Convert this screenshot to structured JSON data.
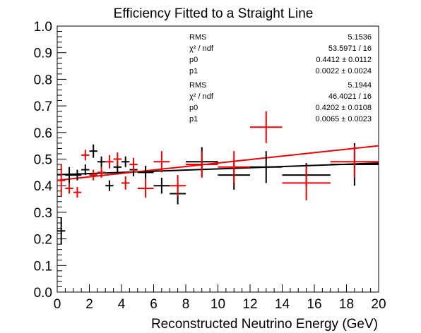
{
  "chart_data": {
    "type": "scatter",
    "title": "Efficiency Fitted to a Straight Line",
    "xlabel": "Reconstructed Neutrino Energy (GeV)",
    "ylabel": "",
    "xlim": [
      0,
      20
    ],
    "ylim": [
      0,
      1.0
    ],
    "xticks": [
      0,
      2,
      4,
      6,
      8,
      10,
      12,
      14,
      16,
      18,
      20
    ],
    "xtick_labels": [
      "0",
      "2",
      "4",
      "6",
      "8",
      "10",
      "12",
      "14",
      "16",
      "18",
      "20"
    ],
    "yticks": [
      0,
      0.1,
      0.2,
      0.3,
      0.4,
      0.5,
      0.6,
      0.7,
      0.8,
      0.9,
      1.0
    ],
    "ytick_labels": [
      "0.0",
      "0.1",
      "0.2",
      "0.3",
      "0.4",
      "0.5",
      "0.6",
      "0.7",
      "0.8",
      "0.9",
      "1.0"
    ],
    "grid": false,
    "series": [
      {
        "color": "#000000",
        "points": [
          {
            "x": 0.25,
            "y": 0.23,
            "xerr": 0.25,
            "yerr": 0.05
          },
          {
            "x": 0.75,
            "y": 0.44,
            "xerr": 0.25,
            "yerr": 0.03
          },
          {
            "x": 1.25,
            "y": 0.44,
            "xerr": 0.25,
            "yerr": 0.02
          },
          {
            "x": 1.75,
            "y": 0.46,
            "xerr": 0.25,
            "yerr": 0.02
          },
          {
            "x": 2.25,
            "y": 0.53,
            "xerr": 0.25,
            "yerr": 0.025
          },
          {
            "x": 2.75,
            "y": 0.49,
            "xerr": 0.25,
            "yerr": 0.02
          },
          {
            "x": 3.25,
            "y": 0.4,
            "xerr": 0.25,
            "yerr": 0.02
          },
          {
            "x": 3.75,
            "y": 0.47,
            "xerr": 0.25,
            "yerr": 0.025
          },
          {
            "x": 4.25,
            "y": 0.49,
            "xerr": 0.25,
            "yerr": 0.02
          },
          {
            "x": 4.75,
            "y": 0.46,
            "xerr": 0.25,
            "yerr": 0.025
          },
          {
            "x": 5.5,
            "y": 0.45,
            "xerr": 0.5,
            "yerr": 0.025
          },
          {
            "x": 6.5,
            "y": 0.4,
            "xerr": 0.5,
            "yerr": 0.03
          },
          {
            "x": 7.5,
            "y": 0.37,
            "xerr": 0.5,
            "yerr": 0.04
          },
          {
            "x": 9.0,
            "y": 0.49,
            "xerr": 1.0,
            "yerr": 0.055
          },
          {
            "x": 11.0,
            "y": 0.44,
            "xerr": 1.0,
            "yerr": 0.055
          },
          {
            "x": 13.0,
            "y": 0.47,
            "xerr": 1.0,
            "yerr": 0.06
          },
          {
            "x": 15.5,
            "y": 0.44,
            "xerr": 1.5,
            "yerr": 0.045
          },
          {
            "x": 18.5,
            "y": 0.48,
            "xerr": 1.5,
            "yerr": 0.08
          }
        ],
        "fit": {
          "p0": 0.4412,
          "p1": 0.0022
        }
      },
      {
        "color": "#ee0000",
        "points": [
          {
            "x": 0.25,
            "y": 0.42,
            "xerr": 0.25,
            "yerr": 0.06
          },
          {
            "x": 0.75,
            "y": 0.39,
            "xerr": 0.25,
            "yerr": 0.02
          },
          {
            "x": 1.25,
            "y": 0.375,
            "xerr": 0.25,
            "yerr": 0.02
          },
          {
            "x": 1.75,
            "y": 0.515,
            "xerr": 0.25,
            "yerr": 0.02
          },
          {
            "x": 2.25,
            "y": 0.44,
            "xerr": 0.25,
            "yerr": 0.02
          },
          {
            "x": 2.75,
            "y": 0.45,
            "xerr": 0.25,
            "yerr": 0.02
          },
          {
            "x": 3.25,
            "y": 0.49,
            "xerr": 0.25,
            "yerr": 0.025
          },
          {
            "x": 3.75,
            "y": 0.5,
            "xerr": 0.25,
            "yerr": 0.025
          },
          {
            "x": 4.25,
            "y": 0.41,
            "xerr": 0.25,
            "yerr": 0.025
          },
          {
            "x": 4.75,
            "y": 0.48,
            "xerr": 0.25,
            "yerr": 0.025
          },
          {
            "x": 5.5,
            "y": 0.39,
            "xerr": 0.5,
            "yerr": 0.035
          },
          {
            "x": 6.5,
            "y": 0.49,
            "xerr": 0.5,
            "yerr": 0.04
          },
          {
            "x": 7.5,
            "y": 0.4,
            "xerr": 0.5,
            "yerr": 0.04
          },
          {
            "x": 9.0,
            "y": 0.48,
            "xerr": 1.0,
            "yerr": 0.05
          },
          {
            "x": 11.0,
            "y": 0.47,
            "xerr": 1.0,
            "yerr": 0.06
          },
          {
            "x": 13.0,
            "y": 0.62,
            "xerr": 1.0,
            "yerr": 0.06
          },
          {
            "x": 15.5,
            "y": 0.41,
            "xerr": 1.5,
            "yerr": 0.065
          },
          {
            "x": 18.5,
            "y": 0.49,
            "xerr": 1.5,
            "yerr": 0.06
          }
        ],
        "fit": {
          "p0": 0.4202,
          "p1": 0.0065
        }
      }
    ],
    "stats_boxes": [
      {
        "rows": [
          {
            "label": "RMS",
            "value": "5.1536"
          },
          {
            "label": "χ² / ndf",
            "value": "53.5971 / 16"
          },
          {
            "label": "p0",
            "value": "0.4412 ± 0.0112"
          },
          {
            "label": "p1",
            "value": "0.0022 ± 0.0024"
          }
        ]
      },
      {
        "rows": [
          {
            "label": "RMS",
            "value": "5.1944"
          },
          {
            "label": "χ² / ndf",
            "value": "46.4021 / 16"
          },
          {
            "label": "p0",
            "value": "0.4202 ± 0.0108"
          },
          {
            "label": "p1",
            "value": "0.0065 ± 0.0023"
          }
        ]
      }
    ]
  }
}
